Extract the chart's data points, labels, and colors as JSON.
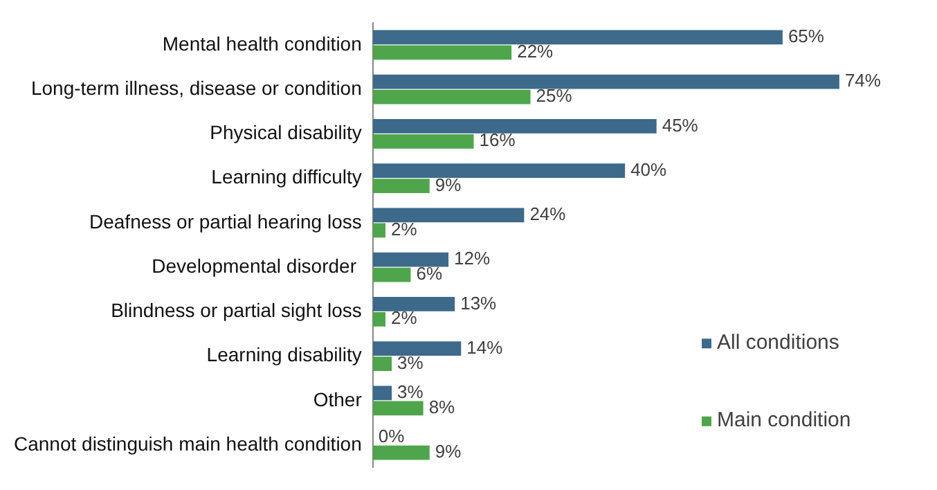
{
  "chart_data": {
    "type": "bar",
    "orientation": "horizontal",
    "legend": "right",
    "categories": [
      "Mental health condition",
      "Long-term illness, disease or condition",
      "Physical disability",
      "Learning difficulty",
      "Deafness or partial hearing loss",
      "Developmental disorder ",
      "Blindness or partial sight loss",
      "Learning disability",
      "Other",
      "Cannot distinguish main health condition"
    ],
    "series": [
      {
        "name": "All conditions",
        "color": "#3d6a8a",
        "values": [
          65,
          74,
          45,
          40,
          24,
          12,
          13,
          14,
          3,
          0
        ],
        "value_labels": [
          "65%",
          "74%",
          "45%",
          "40%",
          "24%",
          "12%",
          "13%",
          "14%",
          "3%",
          "0%"
        ]
      },
      {
        "name": "Main condition",
        "color": "#4ea54b",
        "values": [
          22,
          25,
          16,
          9,
          2,
          6,
          2,
          3,
          8,
          9
        ],
        "value_labels": [
          "22%",
          "25%",
          "16%",
          "9%",
          "2%",
          "6%",
          "2%",
          "3%",
          "8%",
          "9%"
        ]
      }
    ]
  }
}
